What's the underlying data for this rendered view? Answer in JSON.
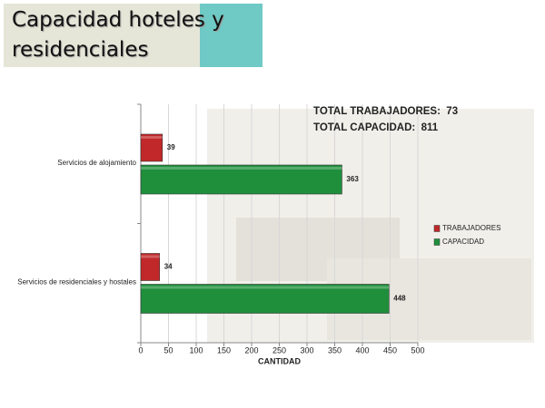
{
  "title": "Capacidad hoteles y residenciales",
  "chart_data": {
    "type": "bar",
    "orientation": "horizontal",
    "categories": [
      "Servicios de alojamiento",
      "Servicios de residenciales y hostales"
    ],
    "series": [
      {
        "name": "TRABAJADORES",
        "color": "#c0282a",
        "values": [
          39,
          34
        ]
      },
      {
        "name": "CAPACIDAD",
        "color": "#1f8f3c",
        "values": [
          363,
          448
        ]
      }
    ],
    "xlim": [
      0,
      500
    ],
    "xticks": [
      0,
      50,
      100,
      150,
      200,
      250,
      300,
      350,
      400,
      450,
      500
    ],
    "xlabel": "CANTIDAD",
    "grid": true,
    "legend": "right",
    "annotations": [
      "TOTAL TRABAJADORES:  73",
      "TOTAL CAPACIDAD:  811"
    ]
  }
}
